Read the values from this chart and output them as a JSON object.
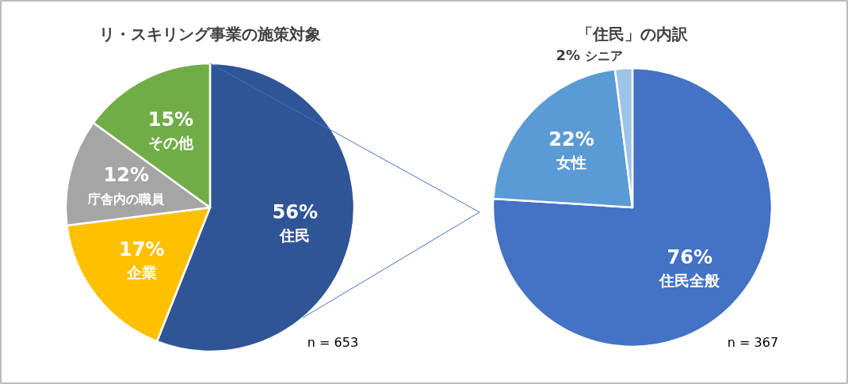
{
  "chart_data": [
    {
      "type": "pie",
      "title": "リ・スキリング事業の施策対象",
      "categories": [
        "住民",
        "企業",
        "庁舎内の職員",
        "その他"
      ],
      "values": [
        56,
        17,
        12,
        15
      ],
      "colors": [
        "#2f5597",
        "#ffc000",
        "#a5a5a5",
        "#70ad47"
      ],
      "value_labels": [
        "56%",
        "17%",
        "12%",
        "15%"
      ],
      "annotations": [
        "n = 653"
      ]
    },
    {
      "type": "pie",
      "title": "「住民」の内訳",
      "categories": [
        "住民全般",
        "女性",
        "シニア"
      ],
      "values": [
        76,
        22,
        2
      ],
      "colors": [
        "#4472c4",
        "#5b9bd5",
        "#9dc3e6"
      ],
      "value_labels": [
        "76%",
        "22%",
        "2%"
      ],
      "annotations": [
        "n = 367"
      ]
    }
  ]
}
